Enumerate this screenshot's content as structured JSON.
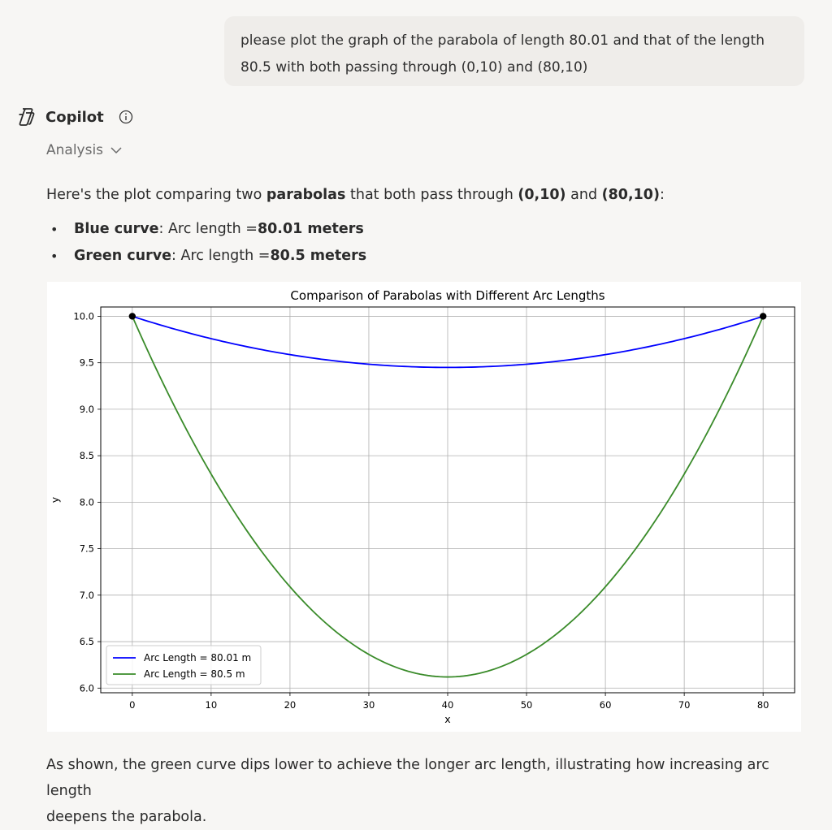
{
  "user_message": {
    "line1": "please plot the graph of the parabola of length 80.01 and that of the length",
    "line2": "80.5 with both passing through (0,10) and (80,10)"
  },
  "assistant": {
    "name": "Copilot",
    "analysis_label": "Analysis",
    "intro": {
      "t1": "Here's the plot comparing two ",
      "b1": "parabolas",
      "t2": " that both pass through ",
      "b2": "(0,10)",
      "t3": " and ",
      "b3": "(80,10)",
      "t4": ":"
    },
    "bullets": [
      {
        "bold_label": "Blue curve",
        "text": ": Arc length = ",
        "bold_value": "80.01 meters"
      },
      {
        "bold_label": "Green curve",
        "text": ": Arc length = ",
        "bold_value": "80.5 meters"
      }
    ],
    "conclusion": {
      "line1": "As shown, the green curve dips lower to achieve the longer arc length, illustrating how increasing arc length",
      "line2": "deepens the parabola."
    }
  },
  "icons": {
    "logo": "copilot-logo-icon",
    "info": "info-icon",
    "expand": "chevron-down-icon"
  },
  "chart_data": {
    "type": "line",
    "title": "Comparison of Parabolas with Different Arc Lengths",
    "xlabel": "x",
    "ylabel": "y",
    "xlim": [
      -4,
      84
    ],
    "ylim": [
      5.95,
      10.1
    ],
    "xticks": [
      0,
      10,
      20,
      30,
      40,
      50,
      60,
      70,
      80
    ],
    "yticks": [
      6.0,
      6.5,
      7.0,
      7.5,
      8.0,
      8.5,
      9.0,
      9.5,
      10.0
    ],
    "ytick_labels": [
      "6.0",
      "6.5",
      "7.0",
      "7.5",
      "8.0",
      "8.5",
      "9.0",
      "9.5",
      "10.0"
    ],
    "grid": true,
    "legend_position": "lower-left",
    "series": [
      {
        "name": "Arc Length = 80.01 m",
        "color": "#0000ff",
        "vertex": [
          40,
          9.45
        ],
        "x": [
          0,
          10,
          20,
          30,
          40,
          50,
          60,
          70,
          80
        ],
        "y": [
          10.0,
          9.76,
          9.59,
          9.48,
          9.45,
          9.48,
          9.59,
          9.76,
          10.0
        ]
      },
      {
        "name": "Arc Length = 80.5 m",
        "color": "#3a8b2a",
        "vertex": [
          40,
          6.12
        ],
        "x": [
          0,
          10,
          20,
          30,
          40,
          50,
          60,
          70,
          80
        ],
        "y": [
          10.0,
          8.3,
          7.09,
          6.36,
          6.12,
          6.36,
          7.09,
          8.3,
          10.0
        ]
      }
    ],
    "markers": [
      {
        "x": 0,
        "y": 10.0,
        "color": "#000000"
      },
      {
        "x": 80,
        "y": 10.0,
        "color": "#000000"
      }
    ]
  }
}
